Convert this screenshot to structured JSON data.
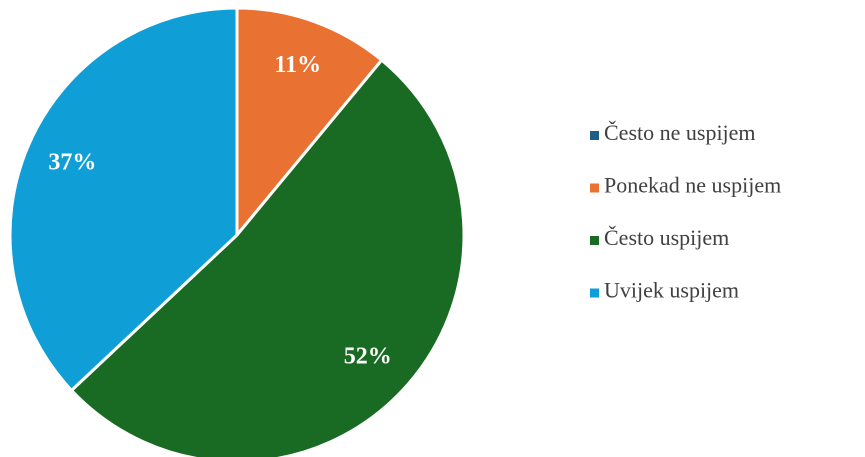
{
  "chart_data": {
    "type": "pie",
    "categories": [
      "Često ne uspijem",
      "Ponekad ne uspijem",
      "Često uspijem",
      "Uvijek uspijem"
    ],
    "values": [
      0,
      11,
      52,
      37
    ],
    "value_labels": [
      null,
      "11%",
      "52%",
      "37%"
    ],
    "colors": [
      "#1f5f86",
      "#e97132",
      "#196b24",
      "#0f9ed5"
    ],
    "legend": "right"
  }
}
